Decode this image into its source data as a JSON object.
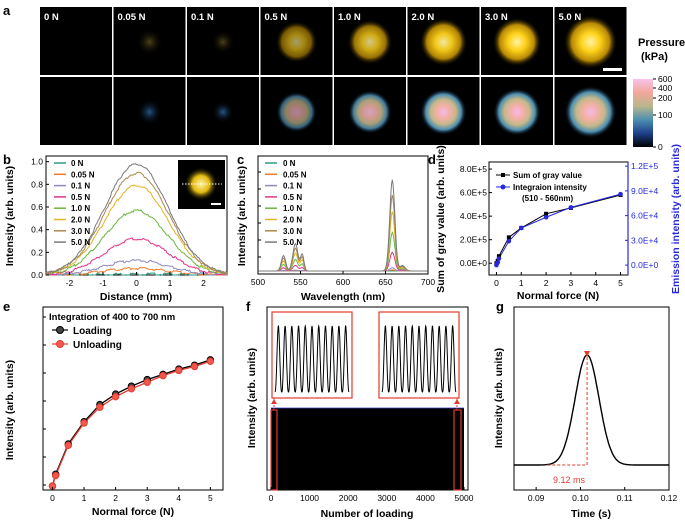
{
  "panel_labels": {
    "a": "a",
    "b": "b",
    "c": "c",
    "d": "d",
    "e": "e",
    "f": "f",
    "g": "g"
  },
  "panel_a": {
    "forces": [
      "0 N",
      "0.05 N",
      "0.1 N",
      "0.5 N",
      "1.0 N",
      "2.0 N",
      "3.0 N",
      "5.0 N"
    ],
    "spot_intensity": [
      0.0,
      0.04,
      0.08,
      0.55,
      0.72,
      0.85,
      0.93,
      1.0
    ],
    "spot_size": [
      0.0,
      0.45,
      0.4,
      0.7,
      0.75,
      0.8,
      0.82,
      0.9
    ],
    "colorbar_title": [
      "Pressure",
      "(kPa)"
    ],
    "colorbar_ticks": [
      "600",
      "400",
      "200",
      "100",
      "0"
    ]
  },
  "chart_data": [
    {
      "panel": "b",
      "type": "line",
      "xlabel": "Distance (mm)",
      "ylabel": "Intensity (arb. units)",
      "xlim": [
        -2.7,
        2.7
      ],
      "ylim": [
        0,
        1.05
      ],
      "xticks": [
        "-2",
        "-1",
        "0",
        "1",
        "2"
      ],
      "yticks": [
        "0.0",
        "0.2",
        "0.4",
        "0.6",
        "0.8",
        "1.0"
      ],
      "series": [
        {
          "name": "0 N",
          "color": "#2b9c86",
          "peak": 0.01
        },
        {
          "name": "0.05 N",
          "color": "#ef7c2c",
          "peak": 0.06
        },
        {
          "name": "0.1 N",
          "color": "#8d8ac2",
          "peak": 0.13
        },
        {
          "name": "0.5 N",
          "color": "#e0348a",
          "peak": 0.32
        },
        {
          "name": "1.0 N",
          "color": "#6ab73d",
          "peak": 0.57
        },
        {
          "name": "2.0 N",
          "color": "#e2b227",
          "peak": 0.79
        },
        {
          "name": "3.0 N",
          "color": "#a98952",
          "peak": 0.9
        },
        {
          "name": "5.0 N",
          "color": "#7b7b7b",
          "peak": 0.98
        }
      ]
    },
    {
      "panel": "c",
      "type": "line",
      "xlabel": "Wavelength (nm)",
      "ylabel": "Intensity (arb. units)",
      "xlim": [
        500,
        700
      ],
      "xticks": [
        "500",
        "550",
        "600",
        "650",
        "700"
      ],
      "peaks_nm": [
        545,
        658
      ],
      "series": [
        {
          "name": "0 N",
          "color": "#2b9c86",
          "peak": 0.0
        },
        {
          "name": "0.05 N",
          "color": "#ef7c2c",
          "peak": 0.01
        },
        {
          "name": "0.1 N",
          "color": "#8d8ac2",
          "peak": 0.03
        },
        {
          "name": "0.5 N",
          "color": "#e0348a",
          "peak": 0.17
        },
        {
          "name": "1.0 N",
          "color": "#6ab73d",
          "peak": 0.35
        },
        {
          "name": "2.0 N",
          "color": "#e2b227",
          "peak": 0.54
        },
        {
          "name": "3.0 N",
          "color": "#a98952",
          "peak": 0.69
        },
        {
          "name": "5.0 N",
          "color": "#7b7b7b",
          "peak": 0.83
        }
      ]
    },
    {
      "panel": "d",
      "type": "line",
      "xlabel": "Normal force (N)",
      "ylabel": "Sum of gray value (arb. units)",
      "y2label": "Emission intensity (arb. units)",
      "xlim": [
        -0.3,
        5.3
      ],
      "ylim": [
        -100000.0,
        860000.0
      ],
      "y2lim": [
        -12000.0,
        125000.0
      ],
      "xticks": [
        "0",
        "1",
        "2",
        "3",
        "4",
        "5"
      ],
      "yticks": [
        "0.0E+0",
        "2.0E+5",
        "4.0E+5",
        "6.0E+5",
        "8.0E+5"
      ],
      "y2ticks": [
        "0.0E+0",
        "3.0E+4",
        "6.0E+4",
        "9.0E+4",
        "1.2E+5"
      ],
      "x": [
        0,
        0.05,
        0.1,
        0.5,
        1.0,
        2.0,
        3.0,
        5.0
      ],
      "series": [
        {
          "name": "Sum of gray value",
          "color": "#000000",
          "values": [
            0,
            20000,
            60000,
            220000,
            300000,
            420000,
            470000,
            580000
          ]
        },
        {
          "name": "Integraion intensity",
          "sub": "(510 - 560nm)",
          "color": "#2828e0",
          "axis": "right",
          "values": [
            0,
            3000,
            8000,
            29000,
            45000,
            58000,
            70000,
            86000
          ]
        }
      ]
    },
    {
      "panel": "e",
      "type": "line",
      "title": "Integration of 400 to 700 nm",
      "xlabel": "Normal force (N)",
      "ylabel": "Intensity (arb. units)",
      "xlim": [
        -0.3,
        5.4
      ],
      "ylim": [
        0,
        1.05
      ],
      "xticks": [
        "0",
        "1",
        "2",
        "3",
        "4",
        "5"
      ],
      "x": [
        0,
        0.1,
        0.5,
        1.0,
        1.5,
        2.0,
        2.5,
        3.0,
        3.5,
        4.0,
        4.5,
        5.0
      ],
      "series": [
        {
          "name": "Loading",
          "color": "#000000",
          "values": [
            0.03,
            0.12,
            0.35,
            0.52,
            0.65,
            0.73,
            0.79,
            0.84,
            0.88,
            0.92,
            0.95,
            0.99
          ]
        },
        {
          "name": "Unloading",
          "color": "#e23b2e",
          "values": [
            0.03,
            0.11,
            0.34,
            0.51,
            0.63,
            0.71,
            0.77,
            0.82,
            0.87,
            0.91,
            0.94,
            0.98
          ]
        }
      ]
    },
    {
      "panel": "f",
      "type": "line",
      "xlabel": "Number of loading",
      "ylabel": "Intensity (arb. units)",
      "xlim": [
        0,
        5000
      ],
      "xticks": [
        "0",
        "1000",
        "2000",
        "3000",
        "4000",
        "5000"
      ],
      "zoom_cycles": 11
    },
    {
      "panel": "g",
      "type": "line",
      "xlabel": "Time (s)",
      "ylabel": "Intensity (arb. units)",
      "xlim": [
        0.085,
        0.12
      ],
      "xticks": [
        "0.09",
        "0.10",
        "0.11",
        "0.12"
      ],
      "peak_time": 0.1015,
      "annotation": "9.12 ms"
    }
  ]
}
